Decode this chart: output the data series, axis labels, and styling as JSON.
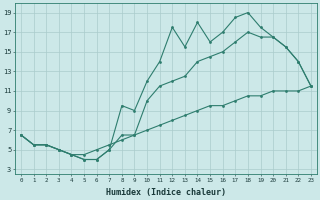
{
  "xlabel": "Humidex (Indice chaleur)",
  "line_color": "#2e7d6e",
  "bg_color": "#cce8e8",
  "grid_color": "#aacccc",
  "yticks": [
    3,
    5,
    7,
    9,
    11,
    13,
    15,
    17,
    19
  ],
  "xticks": [
    0,
    1,
    2,
    3,
    4,
    5,
    6,
    7,
    8,
    9,
    10,
    11,
    12,
    13,
    14,
    15,
    16,
    17,
    18,
    19,
    20,
    21,
    22,
    23
  ],
  "x": [
    0,
    1,
    2,
    3,
    4,
    5,
    6,
    7,
    8,
    9,
    10,
    11,
    12,
    13,
    14,
    15,
    16,
    17,
    18,
    19,
    20,
    21,
    22,
    23
  ],
  "y_bottom": [
    6.5,
    5.5,
    5.5,
    5.0,
    4.5,
    4.5,
    5.0,
    5.5,
    6.0,
    6.5,
    7.0,
    7.5,
    8.0,
    8.5,
    9.0,
    9.5,
    9.5,
    10.0,
    10.5,
    10.5,
    11.0,
    11.0,
    11.0,
    11.5
  ],
  "y_top": [
    6.5,
    5.5,
    5.5,
    5.0,
    4.5,
    4.0,
    4.0,
    5.0,
    9.5,
    9.0,
    12.0,
    14.0,
    17.5,
    15.5,
    18.0,
    16.0,
    17.0,
    18.5,
    19.0,
    17.5,
    16.5,
    15.5,
    14.0,
    11.5
  ],
  "y_mid": [
    6.5,
    5.5,
    5.5,
    5.0,
    4.5,
    4.0,
    4.0,
    5.0,
    6.5,
    6.5,
    10.0,
    11.5,
    12.0,
    12.5,
    14.0,
    14.5,
    15.0,
    16.0,
    17.0,
    16.5,
    16.5,
    15.5,
    14.0,
    11.5
  ]
}
